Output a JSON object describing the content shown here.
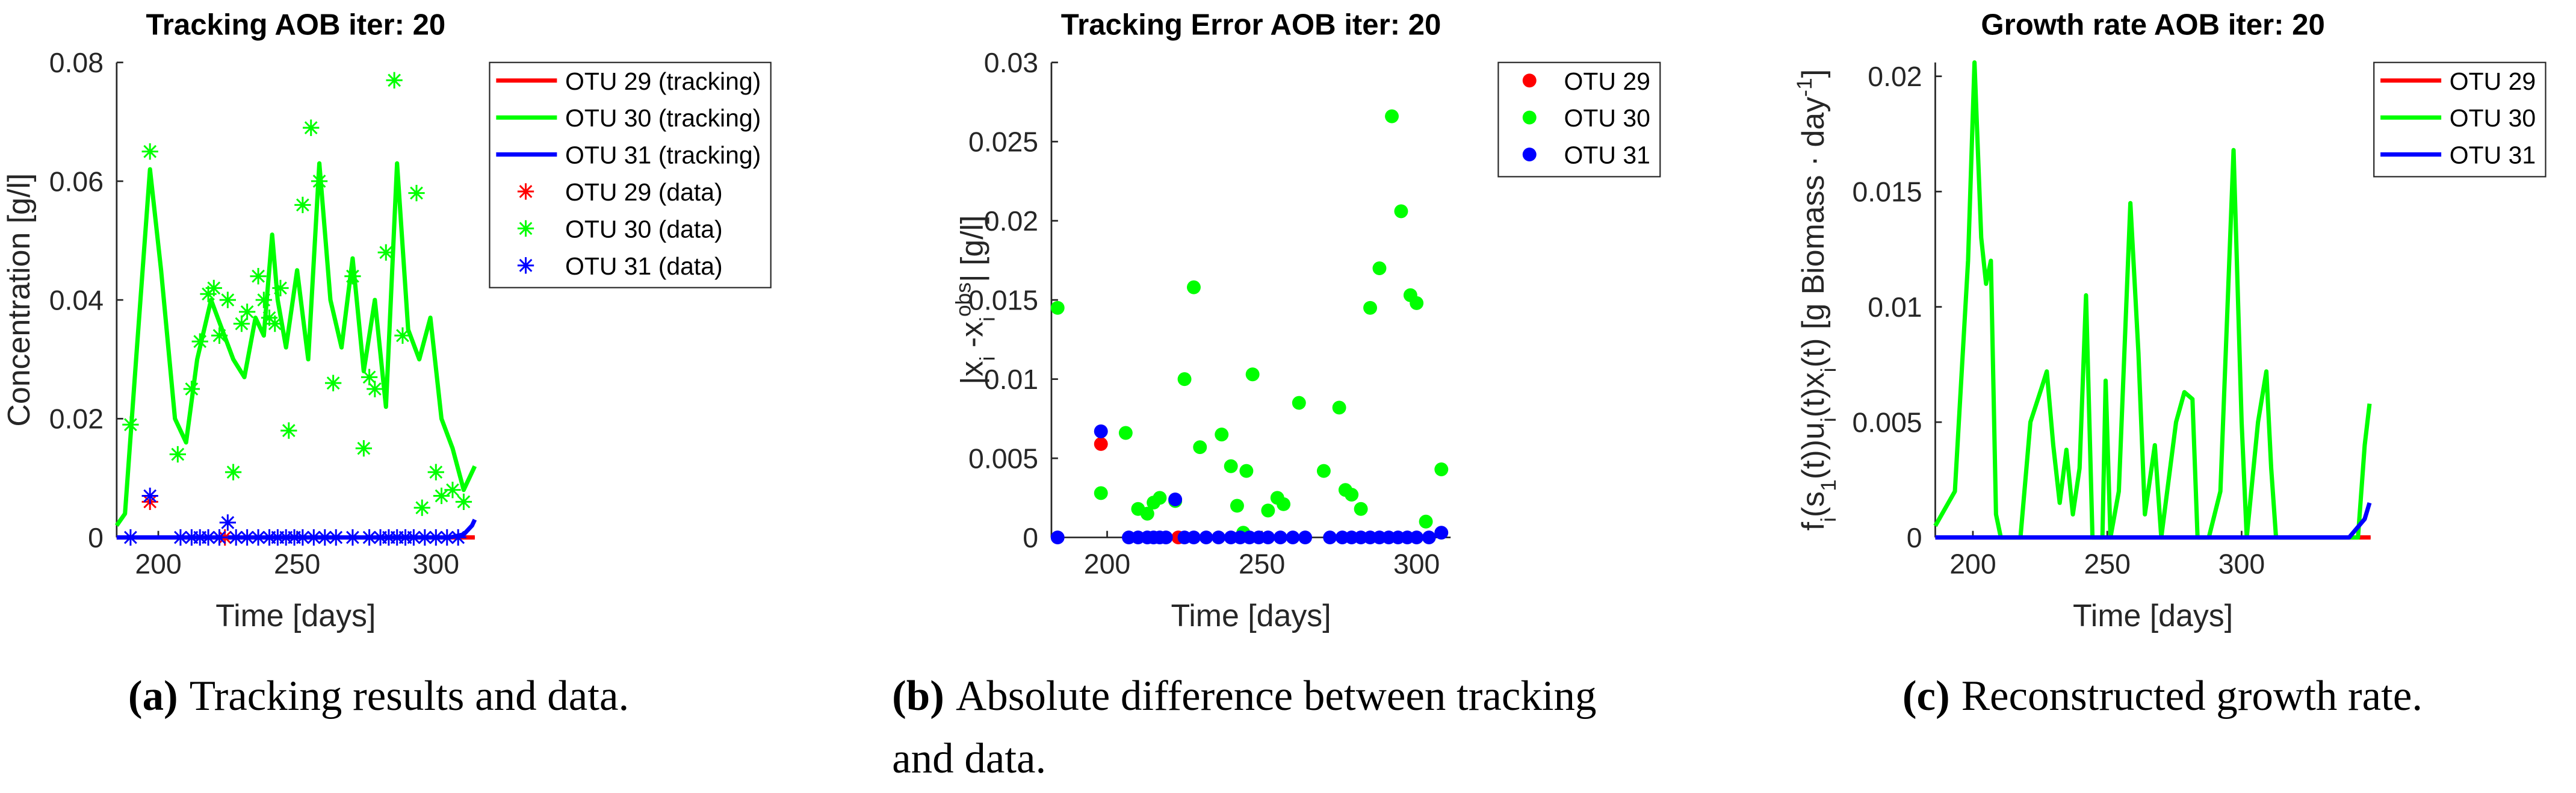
{
  "chart_data": [
    {
      "type": "line",
      "title": "Tracking AOB iter: 20",
      "xlabel": "Time [days]",
      "ylabel_parts": [
        {
          "text": "Concentration [g/l]"
        }
      ],
      "xlim": [
        185,
        314
      ],
      "ylim": [
        0,
        0.08
      ],
      "xticks": [
        200,
        250,
        300
      ],
      "yticks": [
        0,
        0.02,
        0.04,
        0.06,
        0.08
      ],
      "legend": "outside-right",
      "series": [
        {
          "name": "OTU 29 (tracking)",
          "color": "#ff0000",
          "x": [
            185,
            314
          ],
          "values": [
            0,
            0
          ]
        },
        {
          "name": "OTU 30 (tracking)",
          "color": "#00ff00",
          "x": [
            185,
            188,
            192,
            197,
            201,
            206,
            210,
            214,
            219,
            223,
            227,
            231,
            235,
            238,
            241,
            243,
            246,
            250,
            254,
            258,
            262,
            266,
            270,
            274,
            278,
            282,
            286,
            290,
            294,
            298,
            302,
            306,
            310,
            314
          ],
          "values": [
            0.002,
            0.004,
            0.03,
            0.062,
            0.045,
            0.02,
            0.016,
            0.03,
            0.04,
            0.035,
            0.03,
            0.027,
            0.037,
            0.034,
            0.051,
            0.04,
            0.032,
            0.045,
            0.03,
            0.063,
            0.04,
            0.032,
            0.047,
            0.028,
            0.04,
            0.022,
            0.063,
            0.035,
            0.03,
            0.037,
            0.02,
            0.015,
            0.008,
            0.012
          ]
        },
        {
          "name": "OTU 31 (tracking)",
          "color": "#0000ff",
          "x": [
            185,
            305,
            310,
            313,
            314
          ],
          "values": [
            0,
            0,
            0.0005,
            0.002,
            0.003
          ]
        },
        {
          "name": "OTU 29 (data)",
          "color": "#ff0000",
          "marker": "*",
          "x": [
            197,
            224
          ],
          "values": [
            0.006,
            0
          ]
        },
        {
          "name": "OTU 30 (data)",
          "color": "#00ff00",
          "marker": "*",
          "x": [
            190,
            197,
            207,
            212,
            215,
            218,
            220,
            222,
            225,
            227,
            230,
            232,
            236,
            238,
            240,
            242,
            244,
            247,
            252,
            255,
            258,
            263,
            270,
            274,
            276,
            278,
            282,
            285,
            288,
            293,
            295,
            300,
            302,
            306,
            310
          ],
          "values": [
            0.019,
            0.065,
            0.014,
            0.025,
            0.033,
            0.041,
            0.042,
            0.034,
            0.04,
            0.011,
            0.036,
            0.038,
            0.044,
            0.04,
            0.037,
            0.036,
            0.042,
            0.018,
            0.056,
            0.069,
            0.06,
            0.026,
            0.044,
            0.015,
            0.027,
            0.025,
            0.048,
            0.077,
            0.034,
            0.058,
            0.005,
            0.011,
            0.007,
            0.008,
            0.006
          ]
        },
        {
          "name": "OTU 31 (data)",
          "color": "#0000ff",
          "marker": "*",
          "x": [
            190,
            197,
            208,
            212,
            215,
            218,
            222,
            225,
            228,
            232,
            236,
            240,
            243,
            246,
            249,
            252,
            256,
            260,
            264,
            270,
            276,
            280,
            283,
            286,
            289,
            292,
            296,
            300,
            304,
            308
          ],
          "values": [
            0,
            0.007,
            0,
            0,
            0,
            0,
            0,
            0.0025,
            0,
            0,
            0,
            0,
            0,
            0,
            0,
            0,
            0,
            0,
            0,
            0,
            0,
            0,
            0,
            0,
            0,
            0,
            0,
            0,
            0,
            0
          ]
        }
      ],
      "caption_label": "(a)",
      "caption": [
        "Tracking results and data."
      ]
    },
    {
      "type": "scatter",
      "title": "Tracking Error AOB iter: 20",
      "xlabel": "Time [days]",
      "ylabel_parts": [
        {
          "text": "|x"
        },
        {
          "text": "i",
          "shift": "sub"
        },
        {
          "text": " -x"
        },
        {
          "text": "i",
          "shift": "sub"
        },
        {
          "text": "obs",
          "shift": "super"
        },
        {
          "text": "| [g/l]"
        }
      ],
      "xlim": [
        182,
        311
      ],
      "ylim": [
        0,
        0.03
      ],
      "xticks": [
        200,
        250,
        300
      ],
      "yticks": [
        0,
        0.005,
        0.01,
        0.015,
        0.02,
        0.025,
        0.03
      ],
      "legend": "outside-right",
      "series": [
        {
          "name": "OTU 29",
          "color": "#ff0000",
          "x": [
            198,
            223
          ],
          "values": [
            0.0059,
            0
          ]
        },
        {
          "name": "OTU 30",
          "color": "#00ff00",
          "x": [
            184,
            198,
            206,
            210,
            213,
            215,
            217,
            222,
            225,
            228,
            230,
            237,
            240,
            242,
            244,
            245,
            247,
            252,
            255,
            257,
            262,
            270,
            275,
            277,
            279,
            282,
            285,
            288,
            292,
            295,
            298,
            300,
            303,
            308
          ],
          "values": [
            0.0145,
            0.0028,
            0.0066,
            0.0018,
            0.0015,
            0.0022,
            0.0025,
            0.0023,
            0.01,
            0.0158,
            0.0057,
            0.0065,
            0.0045,
            0.002,
            0.0003,
            0.0042,
            0.0103,
            0.0017,
            0.0025,
            0.0021,
            0.0085,
            0.0042,
            0.0082,
            0.003,
            0.0027,
            0.0018,
            0.0145,
            0.017,
            0.0266,
            0.0206,
            0.0153,
            0.0148,
            0.001,
            0.0043
          ]
        },
        {
          "name": "OTU 31",
          "color": "#0000ff",
          "x": [
            184,
            198,
            207,
            210,
            213,
            215,
            217,
            219,
            222,
            225,
            228,
            232,
            236,
            240,
            243,
            246,
            249,
            252,
            256,
            260,
            264,
            272,
            276,
            279,
            282,
            285,
            288,
            291,
            294,
            297,
            300,
            304,
            308
          ],
          "values": [
            0,
            0.0067,
            0,
            0,
            0,
            0,
            0,
            0,
            0.0024,
            0,
            0,
            0,
            0,
            0,
            0,
            0,
            0,
            0,
            0,
            0,
            0,
            0,
            0,
            0,
            0,
            0,
            0,
            0,
            0,
            0,
            0,
            0,
            0.0003
          ]
        }
      ],
      "caption_label": "(b)",
      "caption": [
        "Absolute difference between tracking",
        "and data."
      ]
    },
    {
      "type": "line",
      "title": "Growth rate AOB iter: 20",
      "xlabel": "Time [days]",
      "ylabel_parts": [
        {
          "text": "f"
        },
        {
          "text": "i",
          "shift": "sub"
        },
        {
          "text": "(s"
        },
        {
          "text": "1",
          "shift": "sub"
        },
        {
          "text": "(t))u"
        },
        {
          "text": "i",
          "shift": "sub"
        },
        {
          "text": "(t)x"
        },
        {
          "text": "i",
          "shift": "sub"
        },
        {
          "text": "(t)  [g Biomass · day"
        },
        {
          "text": "-1",
          "shift": "super"
        },
        {
          "text": "]"
        }
      ],
      "xlim": [
        186,
        348
      ],
      "ylim": [
        0,
        0.0206
      ],
      "xticks": [
        200,
        250,
        300
      ],
      "yticks": [
        0,
        0.005,
        0.01,
        0.015,
        0.02
      ],
      "legend": "outside-right",
      "series": [
        {
          "name": "OTU 29",
          "color": "#ff0000",
          "x": [
            186,
            348
          ],
          "values": [
            0,
            0
          ]
        },
        {
          "name": "OTU 30",
          "color": "#00ff00",
          "x": [
            186,
            193.3,
            198.2,
            200.6,
            203.1,
            204.9,
            206.7,
            208.6,
            210.4,
            217.7,
            221.4,
            225.6,
            227.5,
            229.9,
            232.3,
            234.8,
            237.2,
            239.7,
            242.1,
            244.5,
            248.2,
            249.4,
            251.2,
            254.3,
            258.6,
            261.6,
            264,
            267.7,
            270.1,
            275.6,
            278.7,
            281.7,
            283.6,
            287.8,
            292.1,
            297,
            300,
            301.9,
            306.1,
            309.2,
            311,
            312.8,
            343.3,
            345.8,
            347.6
          ],
          "values": [
            0.0005,
            0.002,
            0.012,
            0.0206,
            0.013,
            0.011,
            0.012,
            0.001,
            0,
            0,
            0.005,
            0.0065,
            0.0072,
            0.004,
            0.0015,
            0.0038,
            0.001,
            0.003,
            0.0105,
            0,
            0,
            0.0068,
            0,
            0.002,
            0.0145,
            0.008,
            0.001,
            0.004,
            0,
            0.005,
            0.0063,
            0.006,
            0,
            0,
            0.002,
            0.0168,
            0.005,
            0,
            0.005,
            0.0072,
            0.003,
            0,
            0,
            0.004,
            0.0058
          ]
        },
        {
          "name": "OTU 31",
          "color": "#0000ff",
          "x": [
            186,
            340,
            345.8,
            347.6
          ],
          "values": [
            0,
            0,
            0.0008,
            0.0015
          ]
        }
      ],
      "caption_label": "(c)",
      "caption": [
        "Reconstructed growth rate."
      ]
    }
  ]
}
